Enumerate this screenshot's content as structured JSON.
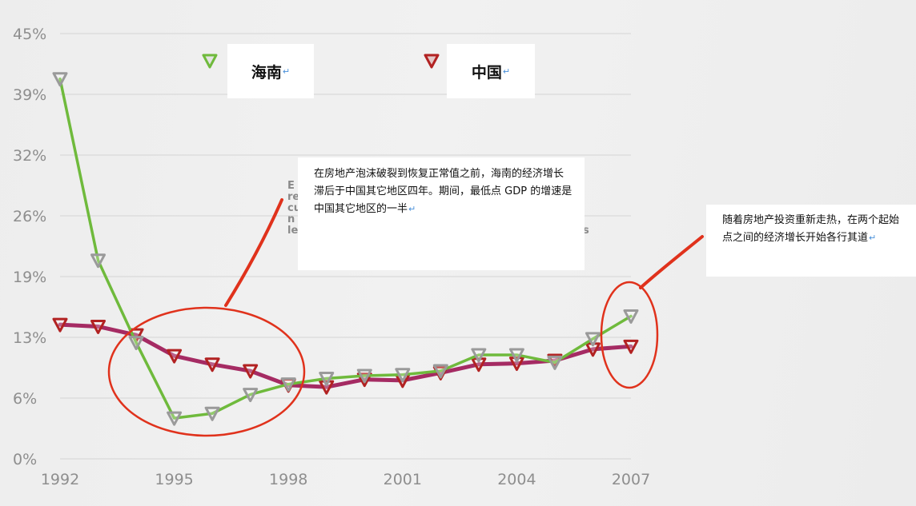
{
  "chart_data": {
    "type": "line",
    "title": "",
    "xlabel": "",
    "ylabel": "",
    "x": [
      1992,
      1993,
      1994,
      1995,
      1996,
      1997,
      1998,
      1999,
      2000,
      2001,
      2002,
      2003,
      2004,
      2005,
      2006,
      2007
    ],
    "x_ticks": [
      "1992",
      "1995",
      "1998",
      "2001",
      "2004",
      "2007"
    ],
    "y_ticks": [
      "0%",
      "6%",
      "13%",
      "19%",
      "26%",
      "32%",
      "39%",
      "45%"
    ],
    "y_tick_values": [
      0,
      6.43,
      12.86,
      19.29,
      25.71,
      32.14,
      38.57,
      45
    ],
    "ylim": [
      0,
      45
    ],
    "grid": "horizontal",
    "series": [
      {
        "name": "海南",
        "color": "#6fba3c",
        "marker_color": "#9a9a9a",
        "values": [
          40.2,
          21.0,
          12.3,
          4.3,
          4.8,
          6.8,
          7.9,
          8.5,
          8.8,
          8.9,
          9.3,
          11.0,
          11.0,
          10.2,
          12.7,
          15.1
        ]
      },
      {
        "name": "中国",
        "color": "#a52b63",
        "marker_color": "#b22222",
        "values": [
          14.2,
          14.0,
          13.1,
          10.9,
          10.0,
          9.3,
          7.8,
          7.6,
          8.4,
          8.3,
          9.1,
          10.0,
          10.1,
          10.4,
          11.6,
          11.9
        ]
      }
    ]
  },
  "legend": {
    "hainan": "海南",
    "china": "中国"
  },
  "annotations": {
    "main_note": "在房地产泡沫破裂到恢复正常值之前，海南的经济增长滞后于中国其它地区四年。期间，最低点 GDP 的增速是中国其它地区的一半",
    "right_note": "随着房地产投资重新走热，在两个起始点之间的经济增长开始各行其道",
    "ghost_lines": [
      "E",
      "re",
      "cu",
      "n",
      "le"
    ],
    "ghost_tail": "s",
    "return_mark": "↵"
  },
  "colors": {
    "highlight_circle": "#e0321c",
    "grid": "#d4d4d4",
    "tick_text": "#8e8e8e"
  }
}
